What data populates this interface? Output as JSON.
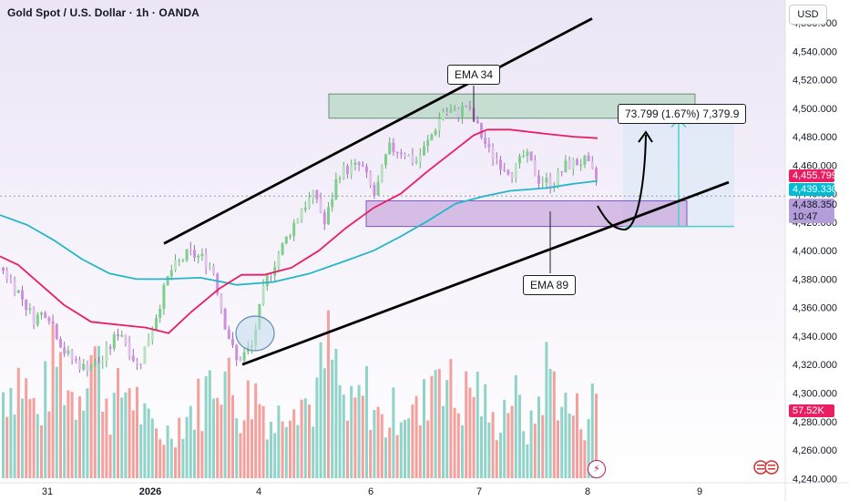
{
  "header": {
    "title": "Gold Spot / U.S. Dollar · 1h · OANDA",
    "currency": "USD"
  },
  "chart_data": {
    "type": "candlestick",
    "symbol": "Gold Spot / U.S. Dollar",
    "interval": "1h",
    "source": "OANDA",
    "ylim": [
      4237,
      4576
    ],
    "y_ticks": [
      "4,560.000",
      "4,540.000",
      "4,520.000",
      "4,500.000",
      "4,480.000",
      "4,460.000",
      "4,440.000",
      "4,420.000",
      "4,400.000",
      "4,380.000",
      "4,360.000",
      "4,340.000",
      "4,320.000",
      "4,300.000",
      "4,280.000",
      "4,260.000",
      "4,240.000"
    ],
    "x_ticks": [
      "31",
      "2026",
      "4",
      "6",
      "7",
      "8",
      "9"
    ],
    "price_tags": [
      {
        "label": "4,455.799",
        "value": 4455.8,
        "color": "#e91e63"
      },
      {
        "label": "4,439.330",
        "value": 4439.3,
        "color": "#00bcd4"
      },
      {
        "label": "4,438.350",
        "value": 4438.35,
        "color": "#b39ddb",
        "countdown": "10:47"
      }
    ],
    "volume_tag": {
      "label": "57.52K",
      "color": "#e91e63"
    },
    "ema_34_points": [
      [
        0,
        4396
      ],
      [
        20,
        4390
      ],
      [
        45,
        4376
      ],
      [
        70,
        4362
      ],
      [
        100,
        4350
      ],
      [
        130,
        4348
      ],
      [
        160,
        4346
      ],
      [
        185,
        4342
      ],
      [
        210,
        4357
      ],
      [
        240,
        4373
      ],
      [
        265,
        4383
      ],
      [
        290,
        4383
      ],
      [
        320,
        4388
      ],
      [
        350,
        4400
      ],
      [
        380,
        4416
      ],
      [
        410,
        4430
      ],
      [
        440,
        4440
      ],
      [
        470,
        4456
      ],
      [
        500,
        4471
      ],
      [
        520,
        4481
      ],
      [
        535,
        4485
      ],
      [
        560,
        4485
      ],
      [
        600,
        4482
      ],
      [
        630,
        4480
      ],
      [
        656,
        4479
      ]
    ],
    "ema_89_points": [
      [
        0,
        4425
      ],
      [
        30,
        4418
      ],
      [
        60,
        4407
      ],
      [
        90,
        4394
      ],
      [
        120,
        4384
      ],
      [
        150,
        4380
      ],
      [
        180,
        4380
      ],
      [
        220,
        4381
      ],
      [
        260,
        4376
      ],
      [
        300,
        4378
      ],
      [
        340,
        4384
      ],
      [
        380,
        4393
      ],
      [
        410,
        4400
      ],
      [
        440,
        4410
      ],
      [
        470,
        4421
      ],
      [
        500,
        4433
      ],
      [
        530,
        4438
      ],
      [
        560,
        4442
      ],
      [
        600,
        4444
      ],
      [
        630,
        4447
      ],
      [
        656,
        4449
      ]
    ],
    "candle_control_points": [
      [
        0,
        4388
      ],
      [
        20,
        4370
      ],
      [
        35,
        4352
      ],
      [
        50,
        4358
      ],
      [
        70,
        4328
      ],
      [
        90,
        4318
      ],
      [
        110,
        4322
      ],
      [
        130,
        4345
      ],
      [
        150,
        4318
      ],
      [
        165,
        4345
      ],
      [
        185,
        4385
      ],
      [
        205,
        4398
      ],
      [
        220,
        4395
      ],
      [
        232,
        4388
      ],
      [
        245,
        4350
      ],
      [
        258,
        4322
      ],
      [
        275,
        4333
      ],
      [
        290,
        4378
      ],
      [
        310,
        4405
      ],
      [
        330,
        4430
      ],
      [
        345,
        4440
      ],
      [
        355,
        4418
      ],
      [
        370,
        4455
      ],
      [
        395,
        4460
      ],
      [
        410,
        4438
      ],
      [
        425,
        4472
      ],
      [
        440,
        4470
      ],
      [
        455,
        4462
      ],
      [
        470,
        4478
      ],
      [
        485,
        4498
      ],
      [
        500,
        4496
      ],
      [
        510,
        4502
      ],
      [
        520,
        4490
      ],
      [
        535,
        4470
      ],
      [
        550,
        4460
      ],
      [
        562,
        4455
      ],
      [
        575,
        4468
      ],
      [
        590,
        4450
      ],
      [
        605,
        4447
      ],
      [
        620,
        4460
      ],
      [
        640,
        4463
      ],
      [
        656,
        4447
      ]
    ],
    "volume_control_points": [
      [
        0,
        98
      ],
      [
        20,
        120
      ],
      [
        40,
        70
      ],
      [
        60,
        140
      ],
      [
        80,
        90
      ],
      [
        100,
        150
      ],
      [
        120,
        80
      ],
      [
        140,
        110
      ],
      [
        160,
        60
      ],
      [
        180,
        50
      ],
      [
        200,
        70
      ],
      [
        220,
        90
      ],
      [
        240,
        135
      ],
      [
        260,
        80
      ],
      [
        280,
        100
      ],
      [
        300,
        60
      ],
      [
        320,
        110
      ],
      [
        340,
        80
      ],
      [
        360,
        150
      ],
      [
        380,
        70
      ],
      [
        400,
        100
      ],
      [
        420,
        60
      ],
      [
        440,
        90
      ],
      [
        460,
        70
      ],
      [
        480,
        150
      ],
      [
        500,
        80
      ],
      [
        520,
        110
      ],
      [
        540,
        60
      ],
      [
        560,
        100
      ],
      [
        580,
        50
      ],
      [
        600,
        130
      ],
      [
        620,
        80
      ],
      [
        640,
        70
      ],
      [
        656,
        100
      ]
    ],
    "annotations": {
      "ema34_label": "EMA 34",
      "ema89_label": "EMA 89",
      "measure_label": "73.799 (1.67%) 7,379.9"
    },
    "zones": {
      "supply": [
        4493,
        4510
      ],
      "demand": [
        4417,
        4435
      ],
      "measure": [
        4417,
        4493
      ]
    },
    "channel": {
      "upper_start": [
        180,
        4405
      ],
      "upper_end": [
        650,
        4563
      ],
      "lower_start": [
        266,
        4320
      ],
      "lower_end": [
        800,
        4448
      ]
    },
    "colors": {
      "ema34": "#e91e63",
      "ema89": "#26b6c9",
      "bull": "#26a69a",
      "bear": "#ef5350",
      "candle_pale": "#d8aee6",
      "supply_zone": "#b8d9c6",
      "demand_zone": "#c9a6dd",
      "measure_zone": "#dbe9f7",
      "projection_arrow": "#000000",
      "measure_arrow": "#4dd0c8"
    }
  }
}
